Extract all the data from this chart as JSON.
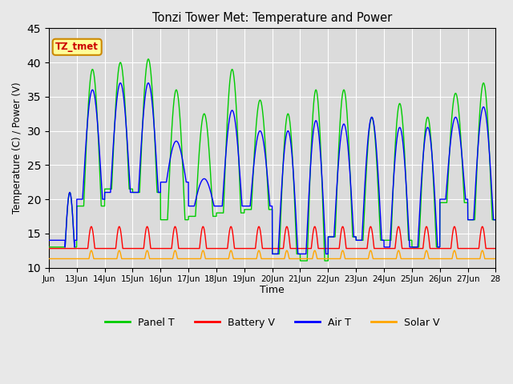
{
  "title": "Tonzi Tower Met: Temperature and Power",
  "xlabel": "Time",
  "ylabel": "Temperature (C) / Power (V)",
  "annotation": "TZ_tmet",
  "ylim": [
    10,
    45
  ],
  "yticks": [
    10,
    15,
    20,
    25,
    30,
    35,
    40,
    45
  ],
  "xtick_labels": [
    "Jun",
    "13Jun",
    "14Jun",
    "15Jun",
    "16Jun",
    "17Jun",
    "18Jun",
    "19Jun",
    "20Jun",
    "21Jun",
    "22Jun",
    "23Jun",
    "24Jun",
    "25Jun",
    "26Jun",
    "27Jun",
    "28"
  ],
  "colors": {
    "panel_t": "#00CC00",
    "battery_v": "#FF0000",
    "air_t": "#0000FF",
    "solar_v": "#FFA500"
  },
  "legend_labels": [
    "Panel T",
    "Battery V",
    "Air T",
    "Solar V"
  ],
  "bg_color": "#E8E8E8",
  "annotation_bg": "#FFFF99",
  "annotation_border": "#CC8800",
  "panel_peaks": [
    39,
    40,
    40.5,
    36,
    32.5,
    39,
    34.5,
    32.5,
    36,
    36,
    32,
    34,
    32,
    35.5,
    37
  ],
  "panel_mins": [
    19,
    21.5,
    21,
    17,
    17.5,
    18,
    18.5,
    12,
    11,
    14.5,
    14,
    14,
    13,
    19.5,
    17
  ],
  "air_peaks": [
    36,
    37,
    37,
    28.5,
    23,
    33,
    30,
    30,
    31.5,
    31,
    32,
    30.5,
    30.5,
    32,
    33.5
  ],
  "air_mins": [
    20,
    21,
    21,
    22.5,
    19,
    19,
    19,
    12,
    12,
    14.5,
    14,
    13,
    13,
    20,
    17
  ],
  "batt_base": 12.8,
  "batt_peak": 16.0,
  "solar_base": 11.3,
  "solar_peak": 12.5,
  "figsize": [
    6.4,
    4.8
  ],
  "dpi": 100
}
